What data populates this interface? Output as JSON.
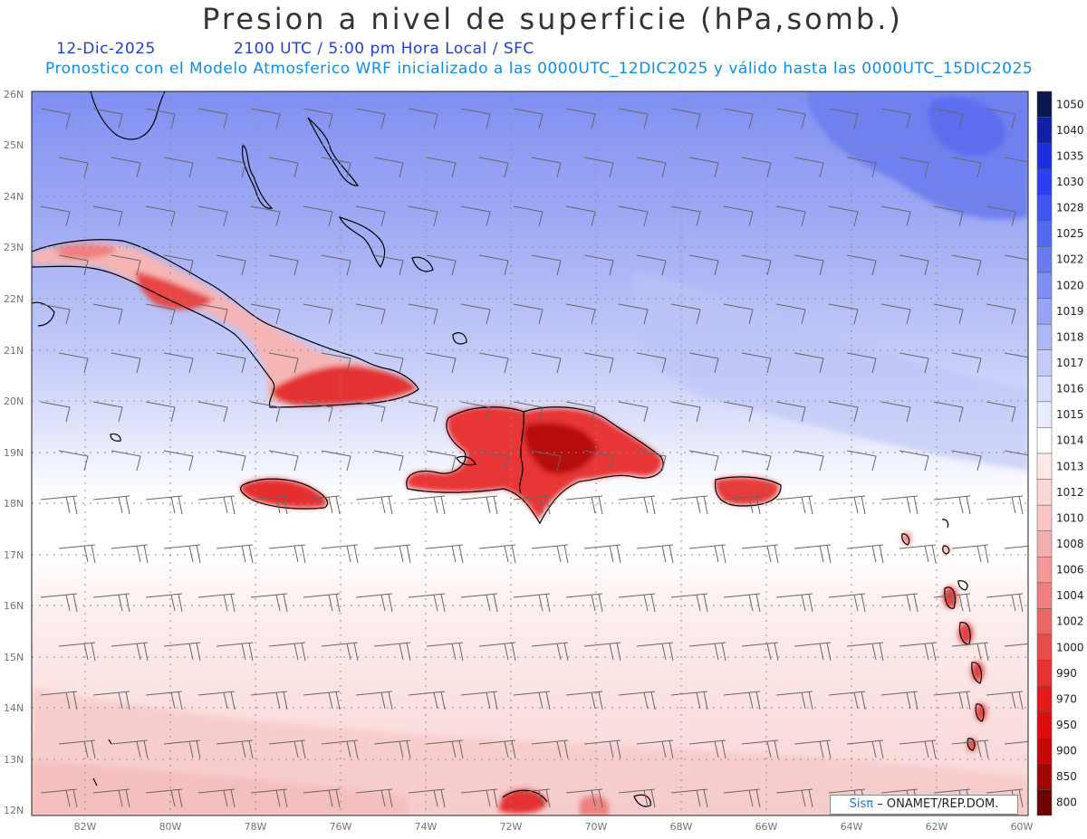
{
  "title": "Presion a nivel de superficie (hPa,somb.)",
  "date": "12-Dic-2025",
  "time_label": "2100 UTC / 5:00 pm Hora Local / SFC",
  "forecast_note": "Pronostico con el Modelo Atmosferico WRF inicializado a las 0000UTC_12DIC2025 y válido hasta las  0000UTC_15DIC2025",
  "credit_logo": "Sisπ",
  "credit_text": "– ONAMET/REP.DOM.",
  "lat_ticks": [
    "26N",
    "25N",
    "24N",
    "23N",
    "22N",
    "21N",
    "20N",
    "19N",
    "18N",
    "17N",
    "16N",
    "15N",
    "14N",
    "13N",
    "12N"
  ],
  "lon_ticks": [
    "82W",
    "80W",
    "78W",
    "76W",
    "74W",
    "72W",
    "70W",
    "68W",
    "66W",
    "64W",
    "62W",
    "60W"
  ],
  "colorbar": [
    {
      "label": "1050",
      "color": "#0b1a4e"
    },
    {
      "label": "1040",
      "color": "#1020a6"
    },
    {
      "label": "1035",
      "color": "#1b2fe0"
    },
    {
      "label": "1030",
      "color": "#2b40f4"
    },
    {
      "label": "1028",
      "color": "#4155f2"
    },
    {
      "label": "1025",
      "color": "#5468f0"
    },
    {
      "label": "1022",
      "color": "#687bf0"
    },
    {
      "label": "1020",
      "color": "#7f8ff2"
    },
    {
      "label": "1019",
      "color": "#97a3f4"
    },
    {
      "label": "1018",
      "color": "#aeb7f6"
    },
    {
      "label": "1017",
      "color": "#c4cbf8"
    },
    {
      "label": "1016",
      "color": "#d8ddfb"
    },
    {
      "label": "1015",
      "color": "#e9ecfd"
    },
    {
      "label": "1014",
      "color": "#ffffff"
    },
    {
      "label": "1013",
      "color": "#fde9e9"
    },
    {
      "label": "1012",
      "color": "#fbd8d8"
    },
    {
      "label": "1010",
      "color": "#f8c4c4"
    },
    {
      "label": "1008",
      "color": "#f5aeae"
    },
    {
      "label": "1006",
      "color": "#f29898"
    },
    {
      "label": "1004",
      "color": "#ef8080"
    },
    {
      "label": "1002",
      "color": "#ec6666"
    },
    {
      "label": "1000",
      "color": "#ea4c4c"
    },
    {
      "label": "990",
      "color": "#e83232"
    },
    {
      "label": "970",
      "color": "#e41a1a"
    },
    {
      "label": "950",
      "color": "#de0c0c"
    },
    {
      "label": "900",
      "color": "#c80606"
    },
    {
      "label": "850",
      "color": "#a00404"
    },
    {
      "label": "800",
      "color": "#6e0202"
    }
  ]
}
